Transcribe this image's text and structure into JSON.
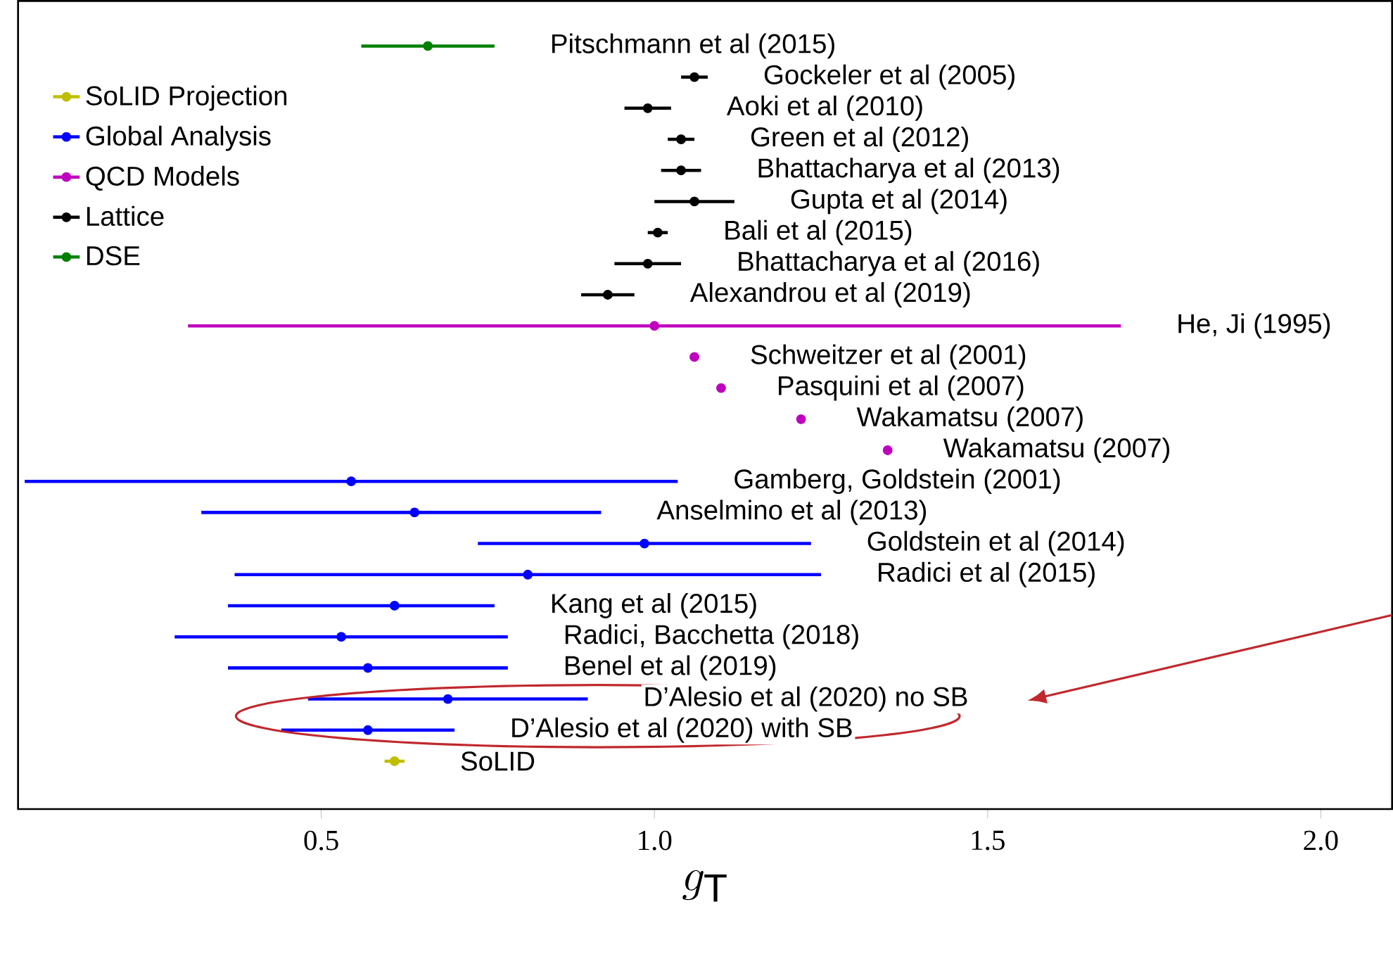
{
  "chart_data": {
    "type": "scatter",
    "orientation": "horizontal",
    "xlabel": "g_{\\rm T}",
    "categories": [
      "Pitschmann et al (2015)",
      "Gockeler et al (2005)",
      "Aoki et al (2010)",
      "Green et al (2012)",
      "Bhattacharya et al (2013)",
      "Gupta et al (2014)",
      "Bali et al (2015)",
      "Bhattacharya et al (2016)",
      "Alexandrou et al (2019)",
      "He, Ji (1995)",
      "Schweitzer et al (2001)",
      "Pasquini et al (2007)",
      "Wakamatsu (2007)",
      "Wakamatsu (2007)",
      "Gamberg, Goldstein (2001)",
      "Anselmino et al (2013)",
      "Goldstein et al (2014)",
      "Radici et al (2015)",
      "Kang et al (2015)",
      "Radici, Bacchetta (2018)",
      "Benel et al (2019)",
      "D’Alesio et al (2020) no SB",
      "D’Alesio et al (2020) with SB",
      "SoLID"
    ],
    "series": [
      {
        "name": "SoLID Projection",
        "color": "#bfbf00",
        "values": [
          null,
          null,
          null,
          null,
          null,
          null,
          null,
          null,
          null,
          null,
          null,
          null,
          null,
          null,
          null,
          null,
          null,
          null,
          null,
          null,
          null,
          null,
          null,
          0.61
        ],
        "errors": [
          null,
          null,
          null,
          null,
          null,
          null,
          null,
          null,
          null,
          null,
          null,
          null,
          null,
          null,
          null,
          null,
          null,
          null,
          null,
          null,
          null,
          null,
          null,
          0.015
        ]
      },
      {
        "name": "Global Analysis",
        "color": "#0000ff",
        "values": [
          null,
          null,
          null,
          null,
          null,
          null,
          null,
          null,
          null,
          null,
          null,
          null,
          null,
          null,
          0.545,
          0.64,
          0.985,
          0.81,
          0.61,
          0.53,
          0.57,
          0.69,
          0.57,
          null
        ],
        "errors": [
          null,
          null,
          null,
          null,
          null,
          null,
          null,
          null,
          null,
          null,
          null,
          null,
          null,
          null,
          0.49,
          [
            0.32,
            0.92
          ],
          0.25,
          0.44,
          [
            0.36,
            0.76
          ],
          0.25,
          0.21,
          0.21,
          0.13,
          null
        ]
      },
      {
        "name": "QCD Models",
        "color": "#bf00bf",
        "values": [
          null,
          null,
          null,
          null,
          null,
          null,
          null,
          null,
          null,
          1.0,
          1.06,
          1.1,
          1.22,
          1.35,
          null,
          null,
          null,
          null,
          null,
          null,
          null,
          null,
          null,
          null
        ],
        "errors": [
          null,
          null,
          null,
          null,
          null,
          null,
          null,
          null,
          null,
          0.7,
          null,
          null,
          null,
          null,
          null,
          null,
          null,
          null,
          null,
          null,
          null,
          null,
          null,
          null
        ]
      },
      {
        "name": "Lattice",
        "color": "#000000",
        "values": [
          null,
          1.06,
          0.99,
          1.04,
          1.04,
          1.06,
          1.005,
          0.99,
          0.93,
          null,
          null,
          null,
          null,
          null,
          null,
          null,
          null,
          null,
          null,
          null,
          null,
          null,
          null,
          null
        ],
        "errors": [
          null,
          0.02,
          0.035,
          0.02,
          0.03,
          0.06,
          0.015,
          0.05,
          0.04,
          null,
          null,
          null,
          null,
          null,
          null,
          null,
          null,
          null,
          null,
          null,
          null,
          null,
          null,
          null
        ]
      },
      {
        "name": "DSE",
        "color": "#008000",
        "values": [
          0.66,
          null,
          null,
          null,
          null,
          null,
          null,
          null,
          null,
          null,
          null,
          null,
          null,
          null,
          null,
          null,
          null,
          null,
          null,
          null,
          null,
          null,
          null,
          null
        ],
        "errors": [
          0.1,
          null,
          null,
          null,
          null,
          null,
          null,
          null,
          null,
          null,
          null,
          null,
          null,
          null,
          null,
          null,
          null,
          null,
          null,
          null,
          null,
          null,
          null,
          null
        ]
      }
    ],
    "xlim": [
      0.045,
      2.107
    ],
    "xticks": [
      0.5,
      {
        "value": 1,
        "label": "1.0"
      },
      1.5,
      {
        "value": 2,
        "label": "2.0"
      }
    ],
    "tick_labels": "x",
    "legend": "top left",
    "marker": "circle",
    "grid": false
  }
}
